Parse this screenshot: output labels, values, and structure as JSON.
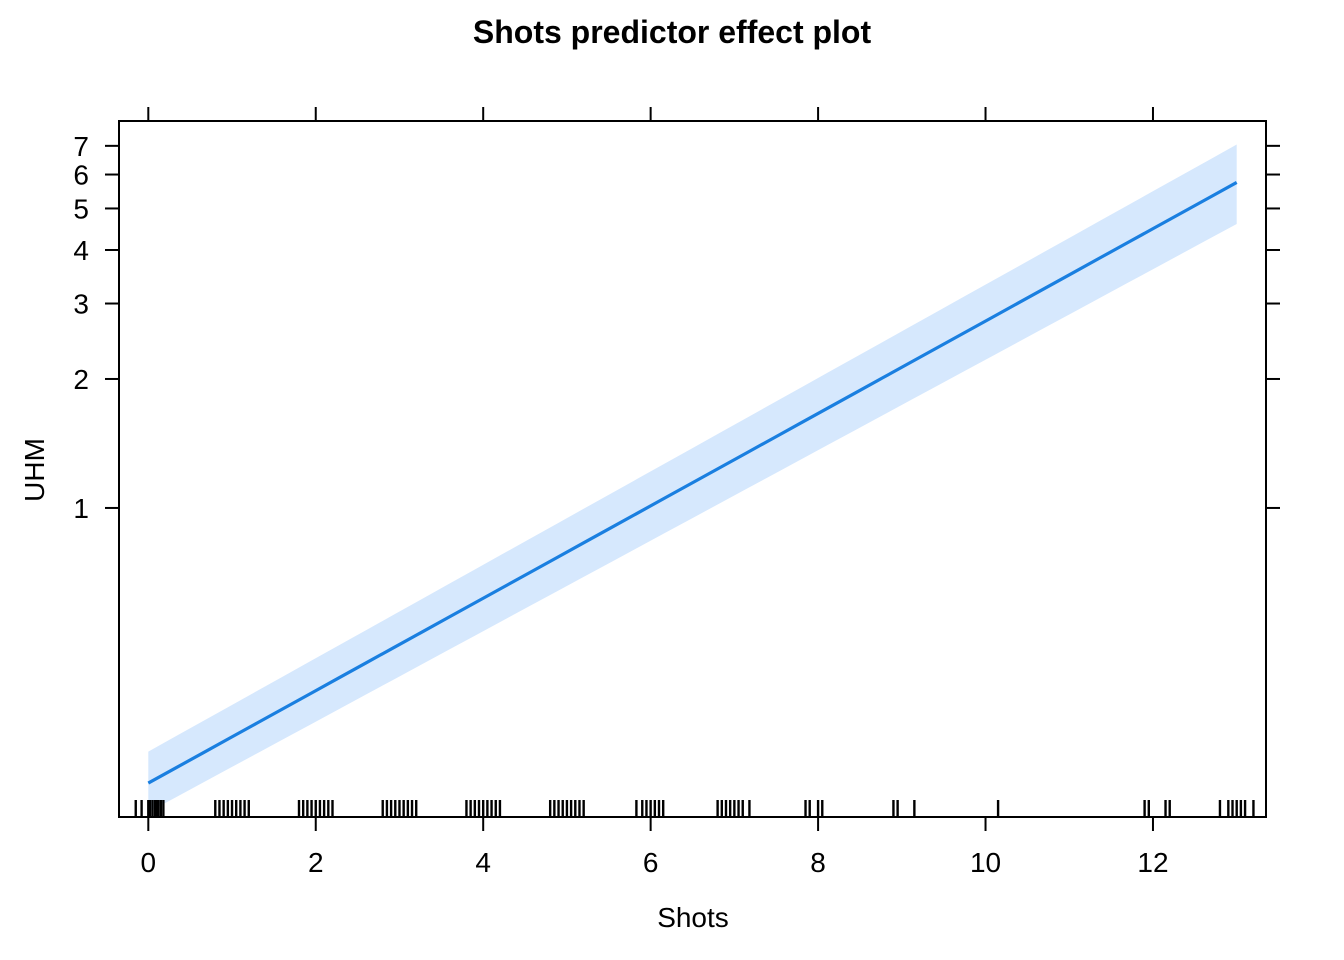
{
  "chart_data": {
    "type": "line",
    "title": "Shots predictor effect plot",
    "xlabel": "Shots",
    "ylabel": "UHM",
    "xlim": [
      -0.35,
      13.35
    ],
    "ylim": [
      0.19,
      8.0
    ],
    "y_scale": "log",
    "x_ticks": [
      0,
      2,
      4,
      6,
      8,
      10,
      12
    ],
    "x_tick_labels": [
      "0",
      "2",
      "4",
      "6",
      "8",
      "10",
      "12"
    ],
    "y_ticks": [
      1,
      2,
      3,
      4,
      5,
      6,
      7
    ],
    "y_tick_labels": [
      "1",
      "2",
      "3",
      "4",
      "5",
      "6",
      "7"
    ],
    "grid": false,
    "line_color": "#1a7fe0",
    "band_color": "#d6e8fd",
    "series": [
      {
        "x": [
          0,
          13
        ],
        "y": [
          0.228,
          5.75
        ],
        "lower": [
          0.195,
          4.6
        ],
        "upper": [
          0.27,
          7.05
        ]
      }
    ],
    "rug": [
      -0.15,
      -0.08,
      0.0,
      0.02,
      0.05,
      0.08,
      0.1,
      0.12,
      0.15,
      0.18,
      0.8,
      0.85,
      0.9,
      0.95,
      1.0,
      1.05,
      1.1,
      1.15,
      1.2,
      1.8,
      1.85,
      1.9,
      1.95,
      2.0,
      2.05,
      2.1,
      2.15,
      2.2,
      2.8,
      2.85,
      2.9,
      2.95,
      3.0,
      3.05,
      3.1,
      3.15,
      3.2,
      3.8,
      3.85,
      3.9,
      3.95,
      4.0,
      4.05,
      4.1,
      4.15,
      4.2,
      4.8,
      4.85,
      4.9,
      4.95,
      5.0,
      5.05,
      5.1,
      5.15,
      5.2,
      5.83,
      5.9,
      5.95,
      6.0,
      6.05,
      6.1,
      6.15,
      6.8,
      6.85,
      6.9,
      6.95,
      7.0,
      7.05,
      7.1,
      7.18,
      7.85,
      7.9,
      8.0,
      8.05,
      8.9,
      8.95,
      9.15,
      10.15,
      11.9,
      11.95,
      12.15,
      12.2,
      12.8,
      12.9,
      12.95,
      13.0,
      13.05,
      13.1,
      13.2
    ]
  }
}
